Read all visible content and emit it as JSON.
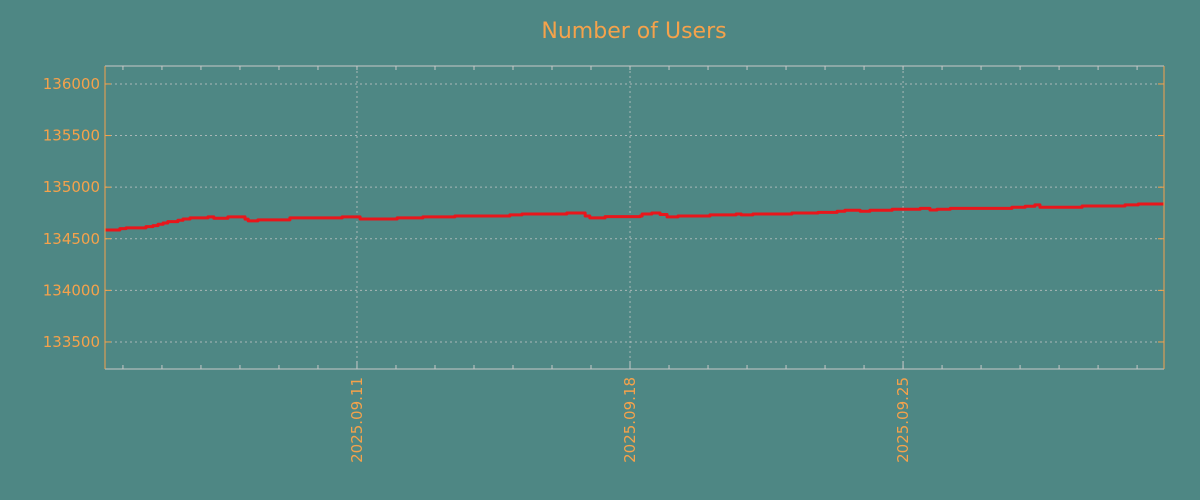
{
  "colors": {
    "background": "#4e8784",
    "text": "#f5a24b",
    "line": "#e8161b",
    "grid": "#c8c8c8",
    "spine": "#f5a24b"
  },
  "chart_data": {
    "type": "line",
    "title": "Number of Users",
    "xlabel": "",
    "ylabel": "",
    "x_units": "days since 2025-09-04",
    "xlim": [
      0.54,
      27.69
    ],
    "ylim": [
      133238,
      136174
    ],
    "grid": true,
    "line_style": "step-after",
    "x_ticks": [
      {
        "value": 7,
        "label": "2025.09.11"
      },
      {
        "value": 14,
        "label": "2025.09.18"
      },
      {
        "value": 21,
        "label": "2025.09.25"
      }
    ],
    "x_minor_ticks_every_days": 1,
    "y_ticks": [
      133500,
      134000,
      134500,
      135000,
      135500,
      136000
    ],
    "series": [
      {
        "name": "Number of Users",
        "points": [
          [
            0.51,
            134585
          ],
          [
            0.92,
            134598
          ],
          [
            1.08,
            134605
          ],
          [
            1.59,
            134617
          ],
          [
            1.77,
            134627
          ],
          [
            1.9,
            134640
          ],
          [
            2.03,
            134653
          ],
          [
            2.15,
            134666
          ],
          [
            2.41,
            134679
          ],
          [
            2.54,
            134692
          ],
          [
            2.72,
            134702
          ],
          [
            3.18,
            134712
          ],
          [
            3.33,
            134699
          ],
          [
            3.69,
            134712
          ],
          [
            4.13,
            134690
          ],
          [
            4.21,
            134673
          ],
          [
            4.46,
            134683
          ],
          [
            5.28,
            134702
          ],
          [
            6.62,
            134712
          ],
          [
            7.08,
            134692
          ],
          [
            8.03,
            134702
          ],
          [
            8.69,
            134712
          ],
          [
            9.51,
            134721
          ],
          [
            10.92,
            134731
          ],
          [
            11.23,
            134740
          ],
          [
            12.38,
            134750
          ],
          [
            12.85,
            134720
          ],
          [
            12.97,
            134702
          ],
          [
            13.36,
            134715
          ],
          [
            14.26,
            134721
          ],
          [
            14.31,
            134740
          ],
          [
            14.56,
            134750
          ],
          [
            14.77,
            134735
          ],
          [
            14.95,
            134712
          ],
          [
            15.23,
            134721
          ],
          [
            16.05,
            134731
          ],
          [
            16.72,
            134740
          ],
          [
            16.85,
            134731
          ],
          [
            17.15,
            134740
          ],
          [
            18.15,
            134750
          ],
          [
            18.82,
            134756
          ],
          [
            19.31,
            134766
          ],
          [
            19.51,
            134776
          ],
          [
            19.9,
            134766
          ],
          [
            20.15,
            134776
          ],
          [
            20.72,
            134786
          ],
          [
            21.44,
            134795
          ],
          [
            21.69,
            134779
          ],
          [
            21.87,
            134786
          ],
          [
            22.21,
            134795
          ],
          [
            23.79,
            134805
          ],
          [
            24.13,
            134815
          ],
          [
            24.38,
            134828
          ],
          [
            24.51,
            134805
          ],
          [
            25.59,
            134818
          ],
          [
            26.69,
            134828
          ],
          [
            27.03,
            134837
          ],
          [
            27.69,
            134837
          ]
        ]
      }
    ]
  }
}
